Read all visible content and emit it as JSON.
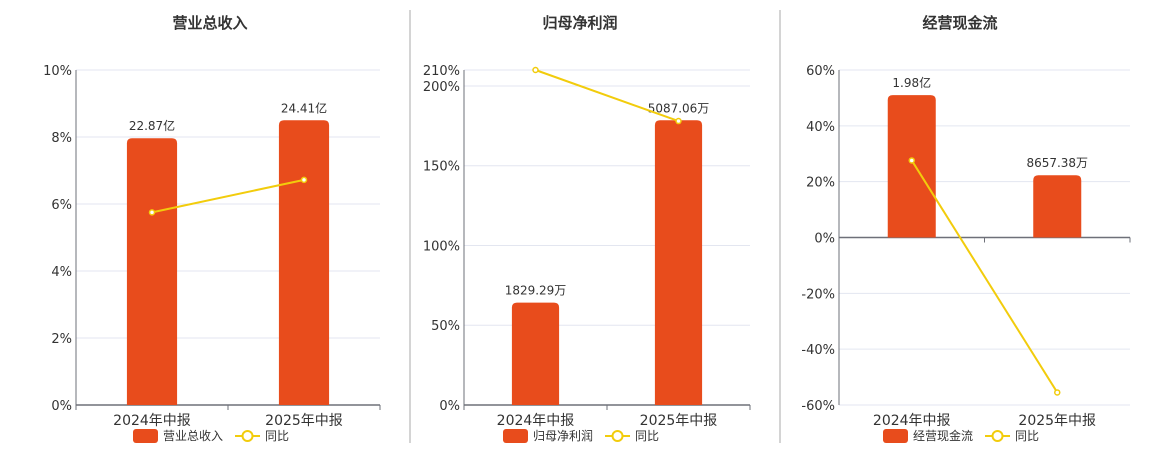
{
  "colors": {
    "bar": "#e84c1c",
    "line": "#f2cc0c",
    "grid": "#e3e6f0",
    "axis": "#6e7079",
    "text": "#333333",
    "separator": "#aaaaaa"
  },
  "chart_data": [
    {
      "type": "bar+line",
      "title": "营业总收入",
      "categories": [
        "2024年中报",
        "2025年中报"
      ],
      "bar_series": {
        "name": "营业总收入",
        "labels": [
          "22.87亿",
          "24.41亿"
        ],
        "values": [
          228700,
          244100
        ]
      },
      "line_series": {
        "name": "同比",
        "values": [
          5.75,
          6.72
        ]
      },
      "yticks": [
        "10%",
        "8%",
        "6%",
        "4%",
        "2%",
        "0%"
      ],
      "ytick_values": [
        10,
        8,
        6,
        4,
        2,
        0
      ],
      "ylim": [
        0,
        10
      ],
      "grid": true,
      "legend": "bottom"
    },
    {
      "type": "bar+line",
      "title": "归母净利润",
      "categories": [
        "2024年中报",
        "2025年中报"
      ],
      "bar_series": {
        "name": "归母净利润",
        "labels": [
          "1829.29万",
          "5087.06万"
        ],
        "values": [
          1829.29,
          5087.06
        ]
      },
      "line_series": {
        "name": "同比",
        "values": [
          210,
          178
        ]
      },
      "yticks": [
        "210%",
        "200%",
        "150%",
        "100%",
        "50%",
        "0%"
      ],
      "ytick_values": [
        210,
        200,
        150,
        100,
        50,
        0
      ],
      "ylim": [
        0,
        210
      ],
      "grid": true,
      "legend": "bottom"
    },
    {
      "type": "bar+line",
      "title": "经营现金流",
      "categories": [
        "2024年中报",
        "2025年中报"
      ],
      "bar_series": {
        "name": "经营现金流",
        "labels": [
          "1.98亿",
          "8657.38万"
        ],
        "values": [
          19800,
          8657.38
        ]
      },
      "line_series": {
        "name": "同比",
        "values": [
          27.6,
          -55.5
        ]
      },
      "yticks": [
        "60%",
        "40%",
        "20%",
        "0%",
        "-20%",
        "-40%",
        "-60%"
      ],
      "ytick_values": [
        60,
        40,
        20,
        0,
        -20,
        -40,
        -60
      ],
      "ylim": [
        -60,
        60
      ],
      "grid": true,
      "legend": "bottom"
    }
  ]
}
